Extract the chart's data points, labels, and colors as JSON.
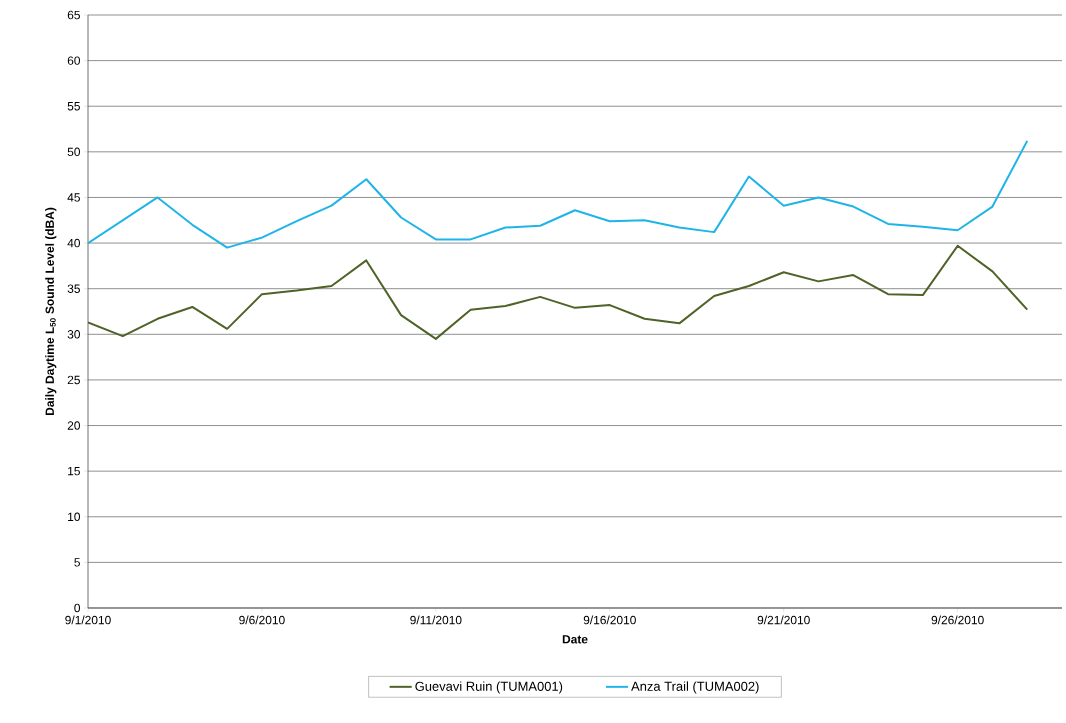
{
  "chart_data": {
    "type": "line",
    "xlabel": "Date",
    "ylabel": "Daily Daytime L$_{50}$ Sound Level (dBA)",
    "x": [
      "2010-09-01",
      "2010-09-02",
      "2010-09-03",
      "2010-09-04",
      "2010-09-05",
      "2010-09-06",
      "2010-09-07",
      "2010-09-08",
      "2010-09-09",
      "2010-09-10",
      "2010-09-11",
      "2010-09-12",
      "2010-09-13",
      "2010-09-14",
      "2010-09-15",
      "2010-09-16",
      "2010-09-17",
      "2010-09-18",
      "2010-09-19",
      "2010-09-20",
      "2010-09-21",
      "2010-09-22",
      "2010-09-23",
      "2010-09-24",
      "2010-09-25",
      "2010-09-26",
      "2010-09-27",
      "2010-09-28"
    ],
    "series": [
      {
        "name": "Guevavi Ruin (TUMA001)",
        "color": "#4f6228",
        "values": [
          31.3,
          29.8,
          31.7,
          33,
          30.6,
          34.4,
          34.8,
          35.3,
          38.1,
          32.1,
          29.5,
          32.7,
          33.1,
          34.1,
          32.9,
          33.2,
          31.7,
          31.2,
          34.2,
          35.3,
          36.8,
          35.8,
          36.5,
          34.4,
          34.3,
          39.7,
          36.9,
          32.7
        ]
      },
      {
        "name": "Anza Trail (TUMA002)",
        "color": "#1fb4e8",
        "values": [
          40,
          42.5,
          45,
          42,
          39.5,
          40.6,
          42.4,
          44.1,
          47,
          42.8,
          40.4,
          40.4,
          41.7,
          41.9,
          43.6,
          42.4,
          42.5,
          41.7,
          41.2,
          47.3,
          44.1,
          45,
          44,
          42.1,
          41.8,
          41.4,
          44,
          51.2
        ]
      }
    ],
    "xlim": [
      "2010-09-01",
      "2010-09-29"
    ],
    "xticks": [
      {
        "value": "2010-09-01",
        "label": "9/1/2010"
      },
      {
        "value": "2010-09-06",
        "label": "9/6/2010"
      },
      {
        "value": "2010-09-11",
        "label": "9/11/2010"
      },
      {
        "value": "2010-09-16",
        "label": "9/16/2010"
      },
      {
        "value": "2010-09-21",
        "label": "9/21/2010"
      },
      {
        "value": "2010-09-26",
        "label": "9/26/2010"
      }
    ],
    "ylim": [
      0,
      65
    ],
    "yticks": [
      0,
      5,
      10,
      15,
      20,
      25,
      30,
      35,
      40,
      45,
      50,
      55,
      60,
      65
    ],
    "grid": "y",
    "legend": "bottom",
    "marker": "none",
    "line_style": "solid"
  }
}
